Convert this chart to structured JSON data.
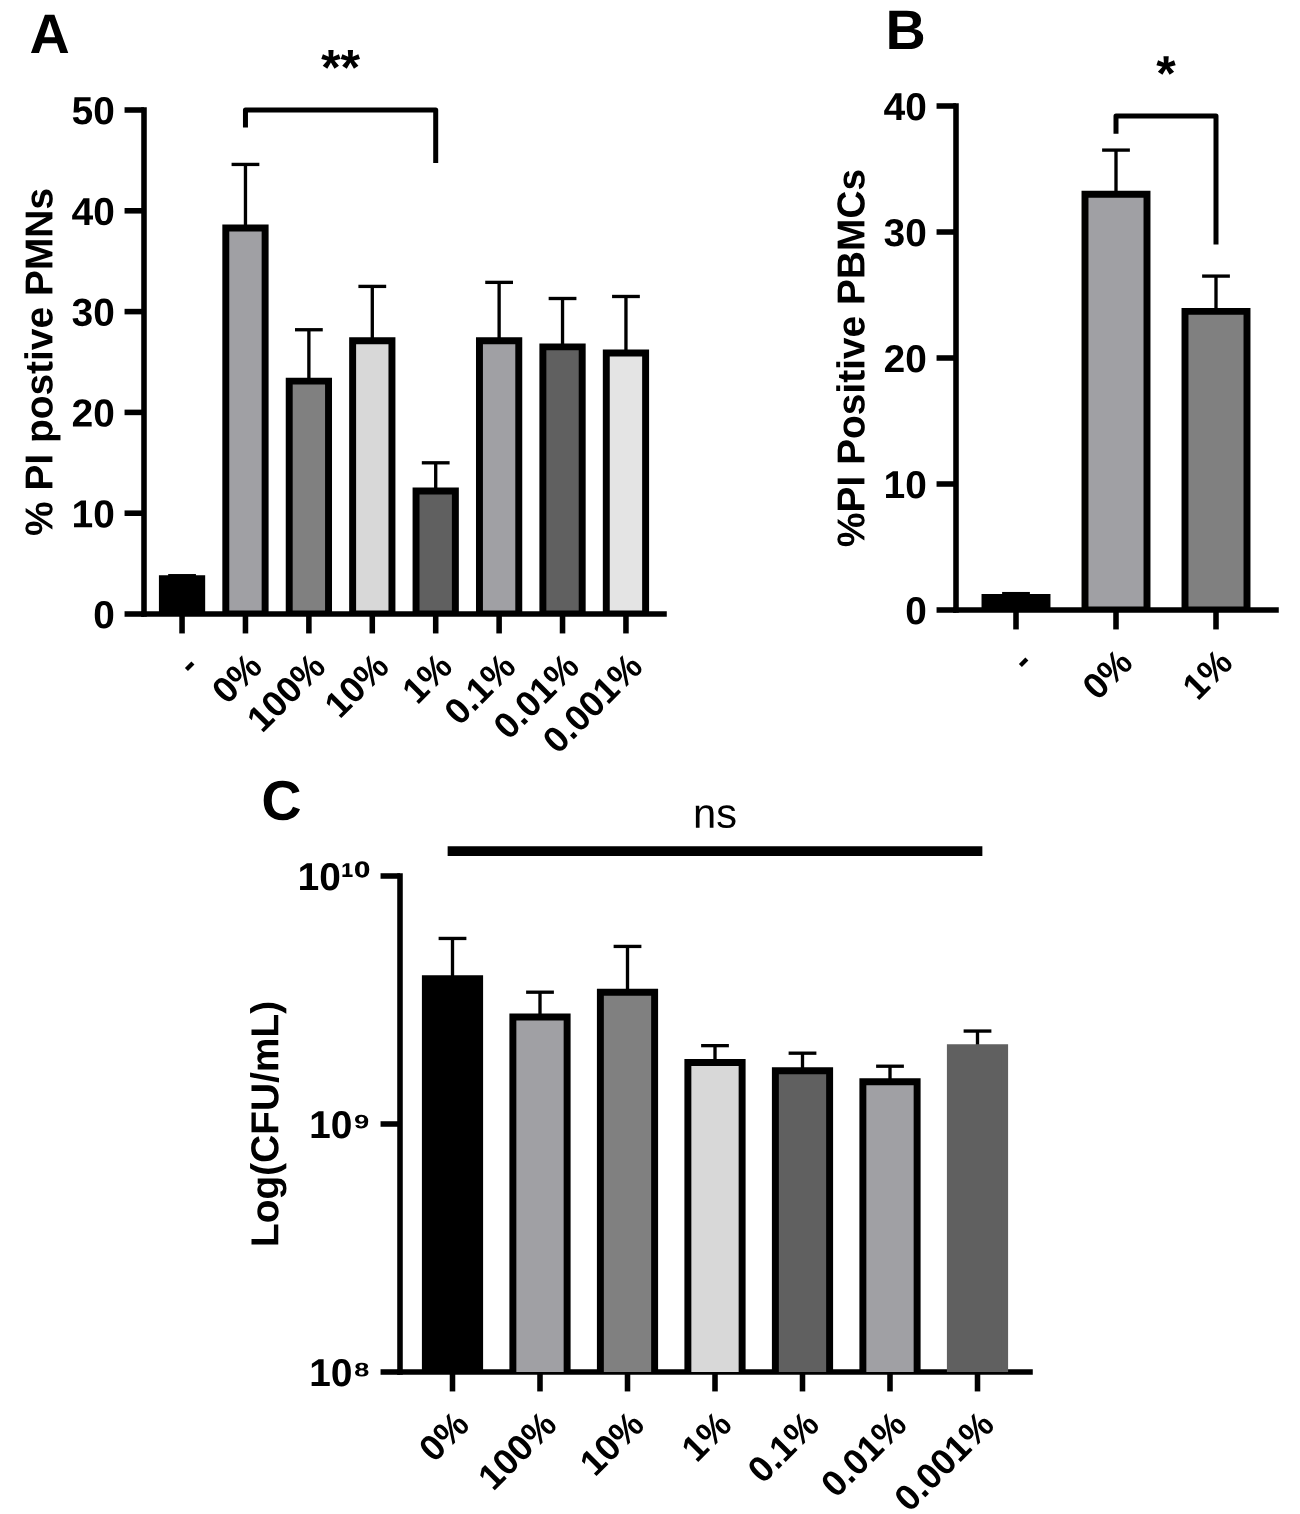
{
  "chart_data": [
    {
      "type": "bar",
      "title": "A",
      "ylabel": "% PI postive PMNs",
      "categories": [
        "-",
        "0%",
        "100%",
        "10%",
        "1%",
        "0.1%",
        "0.01%",
        "0.001%"
      ],
      "values": [
        3.5,
        38.3,
        23.1,
        27.1,
        12.2,
        27.1,
        26.5,
        25.9
      ],
      "errors": [
        [
          3.5,
          3.8
        ],
        [
          38.3,
          44.6
        ],
        [
          23.1,
          28.2
        ],
        [
          27.1,
          32.5
        ],
        [
          12.2,
          15.0
        ],
        [
          27.1,
          32.9
        ],
        [
          26.5,
          31.3
        ],
        [
          25.9,
          31.5
        ]
      ],
      "colors": [
        "#000000",
        "#a0a0a4",
        "#808080",
        "#d8d8d8",
        "#606060",
        "#a0a0a4",
        "#606060",
        "#e4e4e4"
      ],
      "ylim": [
        0,
        50
      ],
      "yticks": [
        0,
        10,
        20,
        30,
        40,
        50
      ],
      "grid": false,
      "legend": false,
      "annotations": [
        "**"
      ]
    },
    {
      "type": "bar",
      "title": "B",
      "ylabel": "%PI Positive PBMCs",
      "categories": [
        "-",
        "0%",
        "1%"
      ],
      "values": [
        1.0,
        33.0,
        23.7
      ],
      "errors": [
        [
          1.0,
          1.3
        ],
        [
          33.0,
          36.5
        ],
        [
          23.7,
          26.5
        ]
      ],
      "colors": [
        "#000000",
        "#a0a0a4",
        "#808080"
      ],
      "ylim": [
        0,
        40
      ],
      "yticks": [
        0,
        10,
        20,
        30,
        40
      ],
      "grid": false,
      "legend": false,
      "annotations": [
        "*"
      ]
    },
    {
      "type": "bar",
      "title": "C",
      "ylabel": "Log(CFU/mL)",
      "categories": [
        "0%",
        "100%",
        "10%",
        "1%",
        "0.1%",
        "0.01%",
        "0.001%"
      ],
      "values": [
        3850000000.0,
        2700000000.0,
        3400000000.0,
        1770000000.0,
        1640000000.0,
        1480000000.0,
        2030000000.0
      ],
      "errors": [
        [
          3850000000.0,
          5600000000.0
        ],
        [
          2700000000.0,
          3400000000.0
        ],
        [
          3400000000.0,
          5200000000.0
        ],
        [
          1770000000.0,
          2070000000.0
        ],
        [
          1640000000.0,
          1930000000.0
        ],
        [
          1480000000.0,
          1710000000.0
        ],
        [
          2030000000.0,
          2370000000.0
        ]
      ],
      "colors": [
        "#000000",
        "#a0a0a4",
        "#808080",
        "#d8d8d8",
        "#606060",
        "#a0a0a4",
        "#606060"
      ],
      "log": true,
      "ylim": [
        100000000.0,
        10000000000.0
      ],
      "yticks": [
        {
          "value": 100000000.0,
          "label": "10⁸"
        },
        {
          "value": 1000000000.0,
          "label": "10⁹"
        },
        {
          "value": 10000000000.0,
          "label": "10¹⁰"
        }
      ],
      "grid": false,
      "legend": false,
      "annotations": [
        "ns"
      ]
    }
  ]
}
